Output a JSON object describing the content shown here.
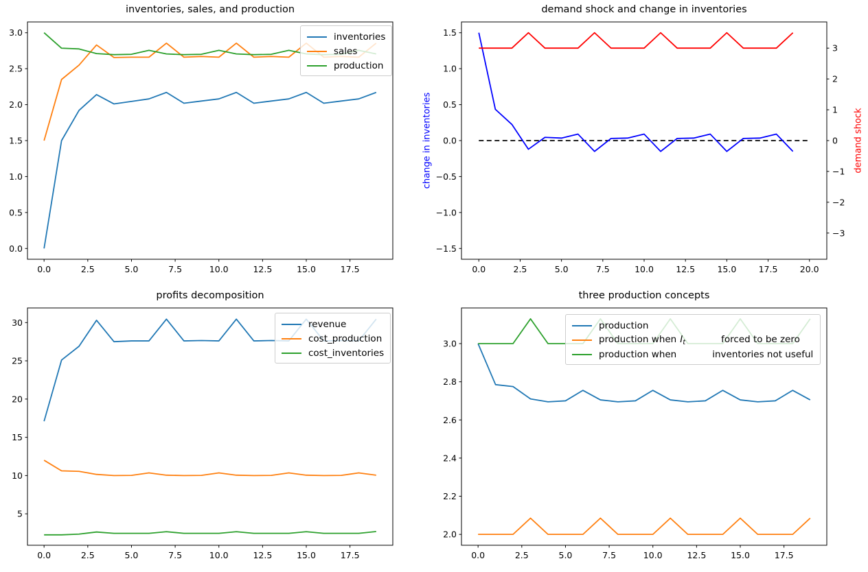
{
  "figure": {
    "background": "#ffffff"
  },
  "chart_data": [
    {
      "id": "inventories-sales-production",
      "type": "line",
      "title": "inventories, sales, and production",
      "x": [
        0,
        1,
        2,
        3,
        4,
        5,
        6,
        7,
        8,
        9,
        10,
        11,
        12,
        13,
        14,
        15,
        16,
        17,
        18,
        19
      ],
      "xlim": [
        -0.95,
        19.95
      ],
      "ylim": [
        -0.15,
        3.15
      ],
      "xticks": {
        "values": [
          0,
          2.5,
          5,
          7.5,
          10,
          12.5,
          15,
          17.5
        ],
        "labels": [
          "0.0",
          "2.5",
          "5.0",
          "7.5",
          "10.0",
          "12.5",
          "15.0",
          "17.5"
        ]
      },
      "yticks": {
        "values": [
          0,
          0.5,
          1,
          1.5,
          2,
          2.5,
          3
        ],
        "labels": [
          "0.0",
          "0.5",
          "1.0",
          "1.5",
          "2.0",
          "2.5",
          "3.0"
        ]
      },
      "series": [
        {
          "name": "inventories",
          "color": "#1f77b4",
          "values": [
            0.0,
            1.5,
            1.92,
            2.14,
            2.01,
            2.045,
            2.08,
            2.17,
            2.02,
            2.05,
            2.08,
            2.17,
            2.02,
            2.05,
            2.08,
            2.17,
            2.02,
            2.05,
            2.08,
            2.17
          ]
        },
        {
          "name": "sales",
          "color": "#ff7f0e",
          "values": [
            1.5,
            2.35,
            2.55,
            2.83,
            2.655,
            2.66,
            2.66,
            2.855,
            2.66,
            2.67,
            2.66,
            2.855,
            2.66,
            2.67,
            2.66,
            2.855,
            2.66,
            2.67,
            2.66,
            2.855
          ]
        },
        {
          "name": "production",
          "color": "#2ca02c",
          "values": [
            3.0,
            2.785,
            2.775,
            2.71,
            2.695,
            2.7,
            2.755,
            2.705,
            2.695,
            2.7,
            2.755,
            2.705,
            2.695,
            2.7,
            2.755,
            2.705,
            2.695,
            2.7,
            2.755,
            2.705
          ]
        }
      ],
      "legend": {
        "position": "upper-right",
        "items": [
          {
            "label": "inventories",
            "color": "#1f77b4",
            "parts": [
              {
                "text": "inventories",
                "style": "plain"
              }
            ]
          },
          {
            "label": "sales",
            "color": "#ff7f0e",
            "parts": [
              {
                "text": "sales",
                "style": "plain"
              }
            ]
          },
          {
            "label": "production",
            "color": "#2ca02c",
            "parts": [
              {
                "text": "production",
                "style": "plain"
              }
            ]
          }
        ]
      }
    },
    {
      "id": "demand-shock-and-change-in-inventories",
      "type": "line",
      "title": "demand shock and change in inventories",
      "x": [
        0,
        1,
        2,
        3,
        4,
        5,
        6,
        7,
        8,
        9,
        10,
        11,
        12,
        13,
        14,
        15,
        16,
        17,
        18,
        19
      ],
      "xlim": [
        -1.05,
        21.05
      ],
      "ylim": [
        -1.65,
        1.65
      ],
      "right_ylim": [
        -3.85,
        3.85
      ],
      "xticks": {
        "values": [
          0,
          2.5,
          5,
          7.5,
          10,
          12.5,
          15,
          17.5,
          20
        ],
        "labels": [
          "0.0",
          "2.5",
          "5.0",
          "7.5",
          "10.0",
          "12.5",
          "15.0",
          "17.5",
          "20.0"
        ]
      },
      "yticks": {
        "values": [
          1.5,
          1.0,
          0.5,
          0.0,
          -0.5,
          -1.0,
          -1.5
        ],
        "labels": [
          "1.5",
          "1.0",
          "0.5",
          "0.0",
          "−0.5",
          "−1.0",
          "−1.5"
        ]
      },
      "right_yticks": {
        "values": [
          3,
          2,
          1,
          0,
          -1,
          -2,
          -3
        ],
        "labels": [
          "3",
          "2",
          "1",
          "0",
          "−1",
          "−2",
          "−3"
        ]
      },
      "ylabel_left": {
        "text": "change in inventories",
        "color": "#0000ff"
      },
      "ylabel_right": {
        "text": "demand shock",
        "color": "#ff0000"
      },
      "series": [
        {
          "name": "zero-line",
          "color": "#000000",
          "dash": true,
          "xvals": [
            0,
            20
          ],
          "values": [
            0,
            0
          ]
        },
        {
          "name": "change in inventories",
          "color": "#0000ff",
          "values": [
            1.5,
            0.435,
            0.225,
            -0.12,
            0.045,
            0.035,
            0.09,
            -0.15,
            0.03,
            0.035,
            0.09,
            -0.15,
            0.03,
            0.035,
            0.09,
            -0.15,
            0.03,
            0.035,
            0.09,
            -0.15
          ]
        },
        {
          "name": "demand shock",
          "color": "#ff0000",
          "axis": "right",
          "values": [
            3,
            3,
            3,
            3.5,
            3,
            3,
            3,
            3.5,
            3,
            3,
            3,
            3.5,
            3,
            3,
            3,
            3.5,
            3,
            3,
            3,
            3.5
          ]
        }
      ]
    },
    {
      "id": "profits-decomposition",
      "type": "line",
      "title": "profits decomposition",
      "x": [
        0,
        1,
        2,
        3,
        4,
        5,
        6,
        7,
        8,
        9,
        10,
        11,
        12,
        13,
        14,
        15,
        16,
        17,
        18,
        19
      ],
      "xlim": [
        -0.95,
        19.95
      ],
      "ylim": [
        0.89,
        31.91
      ],
      "xticks": {
        "values": [
          0,
          2.5,
          5,
          7.5,
          10,
          12.5,
          15,
          17.5
        ],
        "labels": [
          "0.0",
          "2.5",
          "5.0",
          "7.5",
          "10.0",
          "12.5",
          "15.0",
          "17.5"
        ]
      },
      "yticks": {
        "values": [
          5,
          10,
          15,
          20,
          25,
          30
        ],
        "labels": [
          "5",
          "10",
          "15",
          "20",
          "25",
          "30"
        ]
      },
      "series": [
        {
          "name": "revenue",
          "color": "#1f77b4",
          "values": [
            17.1,
            25.1,
            26.9,
            30.3,
            27.5,
            27.6,
            27.6,
            30.45,
            27.6,
            27.65,
            27.6,
            30.45,
            27.6,
            27.65,
            27.6,
            30.45,
            27.6,
            27.65,
            27.6,
            30.45
          ]
        },
        {
          "name": "cost_production",
          "color": "#ff7f0e",
          "values": [
            12.0,
            10.62,
            10.55,
            10.15,
            10.0,
            10.02,
            10.35,
            10.05,
            10.0,
            10.02,
            10.35,
            10.05,
            10.0,
            10.02,
            10.35,
            10.05,
            10.0,
            10.02,
            10.35,
            10.05
          ]
        },
        {
          "name": "cost_inventories",
          "color": "#2ca02c",
          "values": [
            2.25,
            2.25,
            2.35,
            2.62,
            2.45,
            2.45,
            2.45,
            2.66,
            2.45,
            2.45,
            2.45,
            2.66,
            2.45,
            2.45,
            2.45,
            2.66,
            2.45,
            2.45,
            2.45,
            2.68
          ]
        }
      ],
      "legend": {
        "position": "upper-right",
        "items": [
          {
            "label": "revenue",
            "color": "#1f77b4",
            "parts": [
              {
                "text": "revenue",
                "style": "plain"
              }
            ]
          },
          {
            "label": "cost_production",
            "color": "#ff7f0e",
            "parts": [
              {
                "text": "cost_production",
                "style": "plain"
              }
            ]
          },
          {
            "label": "cost_inventories",
            "color": "#2ca02c",
            "parts": [
              {
                "text": "cost_inventories",
                "style": "plain"
              }
            ]
          }
        ]
      }
    },
    {
      "id": "three-production-concepts",
      "type": "line",
      "title": "three production concepts",
      "x": [
        0,
        1,
        2,
        3,
        4,
        5,
        6,
        7,
        8,
        9,
        10,
        11,
        12,
        13,
        14,
        15,
        16,
        17,
        18,
        19
      ],
      "xlim": [
        -0.95,
        19.95
      ],
      "ylim": [
        1.943,
        3.187
      ],
      "xticks": {
        "values": [
          0,
          2.5,
          5,
          7.5,
          10,
          12.5,
          15,
          17.5
        ],
        "labels": [
          "0.0",
          "2.5",
          "5.0",
          "7.5",
          "10.0",
          "12.5",
          "15.0",
          "17.5"
        ]
      },
      "yticks": {
        "values": [
          2.0,
          2.2,
          2.4,
          2.6,
          2.8,
          3.0
        ],
        "labels": [
          "2.0",
          "2.2",
          "2.4",
          "2.6",
          "2.8",
          "3.0"
        ]
      },
      "series": [
        {
          "name": "production",
          "color": "#1f77b4",
          "values": [
            3.0,
            2.785,
            2.775,
            2.71,
            2.695,
            2.7,
            2.755,
            2.705,
            2.695,
            2.7,
            2.755,
            2.705,
            2.695,
            2.7,
            2.755,
            2.705,
            2.695,
            2.7,
            2.755,
            2.705
          ]
        },
        {
          "name": "production when It forced to be zero",
          "color": "#ff7f0e",
          "values": [
            2.0,
            2.0,
            2.0,
            2.085,
            2.0,
            2.0,
            2.0,
            2.085,
            2.0,
            2.0,
            2.0,
            2.085,
            2.0,
            2.0,
            2.0,
            2.085,
            2.0,
            2.0,
            2.0,
            2.085
          ]
        },
        {
          "name": "production when inventories not useful",
          "color": "#2ca02c",
          "values": [
            3.0,
            3.0,
            3.0,
            3.13,
            3.0,
            3.0,
            3.0,
            3.13,
            3.0,
            3.0,
            3.0,
            3.13,
            3.0,
            3.0,
            3.0,
            3.13,
            3.0,
            3.0,
            3.0,
            3.13
          ]
        }
      ],
      "legend": {
        "position": "upper-center",
        "items": [
          {
            "label": "production",
            "color": "#1f77b4",
            "parts": [
              {
                "text": "production",
                "style": "plain"
              }
            ]
          },
          {
            "label": "production when It forced to be zero",
            "color": "#ff7f0e",
            "parts": [
              {
                "text": "production when",
                "style": "plain"
              },
              {
                "text": "I",
                "style": "var"
              },
              {
                "text": "t",
                "style": "sub"
              },
              {
                "text": "forced to be zero",
                "style": "after-gap"
              }
            ]
          },
          {
            "label": "production when inventories not useful",
            "color": "#2ca02c",
            "parts": [
              {
                "text": "production when",
                "style": "plain"
              },
              {
                "text": "inventories not useful",
                "style": "after-gap"
              }
            ]
          }
        ]
      }
    }
  ]
}
